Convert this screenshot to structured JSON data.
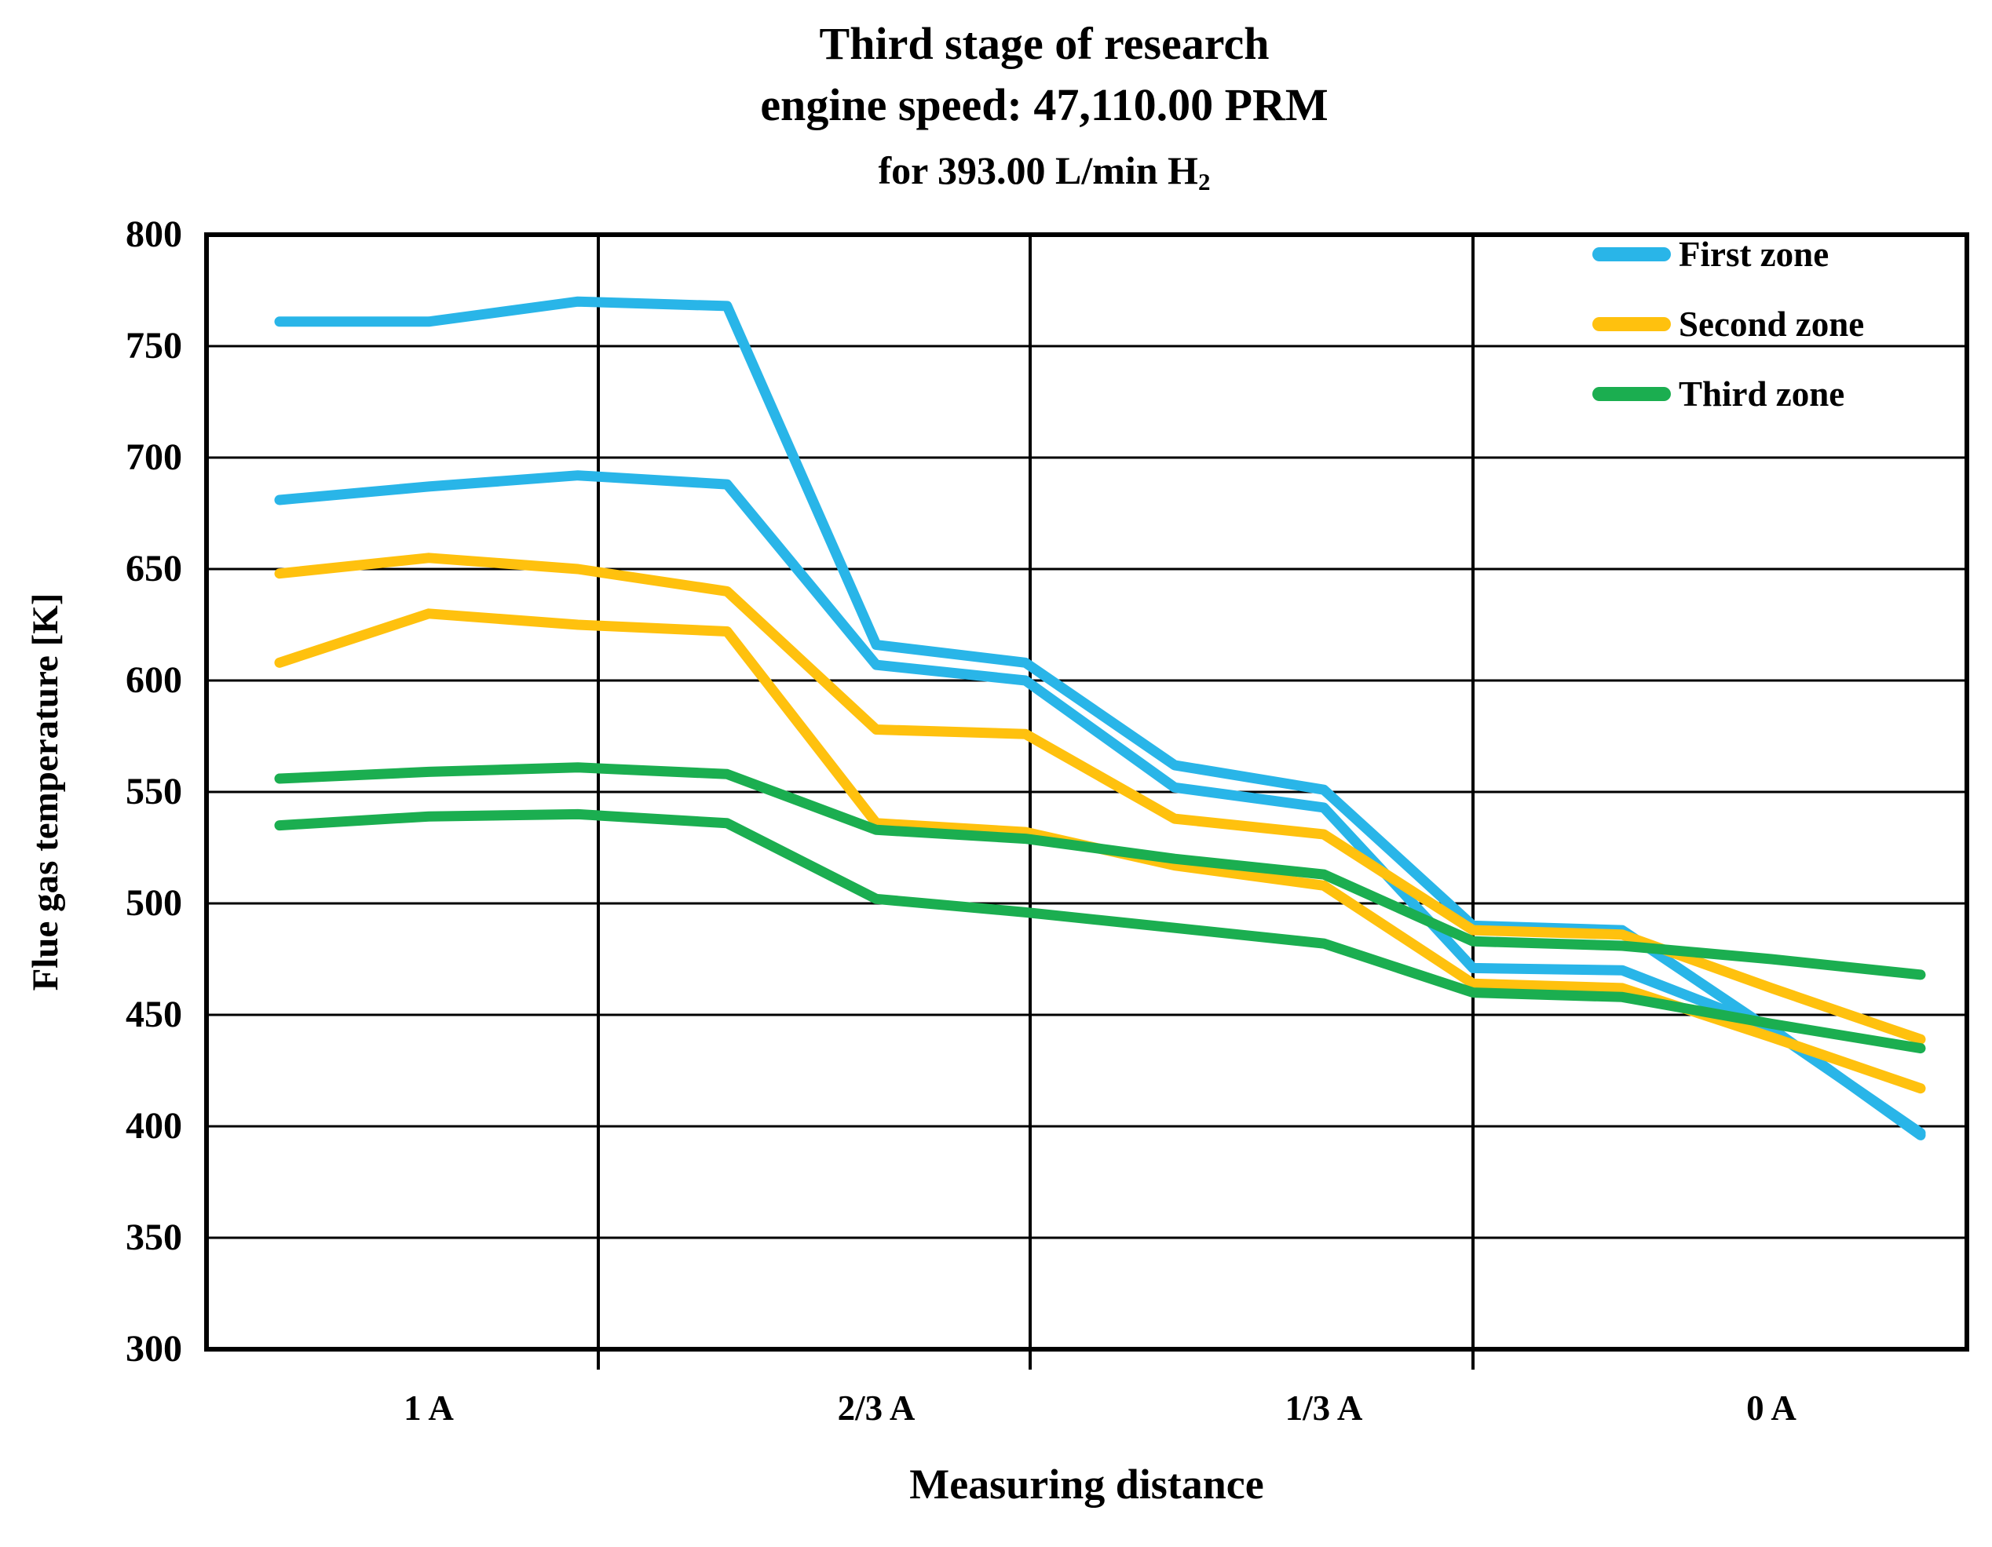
{
  "title": {
    "line1": "Third stage of research",
    "line2": "engine speed: 47,110.00 PRM",
    "line3_prefix": "for 393.00 L/min H",
    "line3_sub": "2"
  },
  "chart_data": {
    "type": "line",
    "title": "Third stage of research engine speed: 47,110.00 PRM for 393.00 L/min H2",
    "xlabel": "Measuring distance",
    "ylabel": "Flue gas temperature [K]",
    "ylim": [
      300,
      800
    ],
    "yticks": [
      800,
      750,
      700,
      650,
      600,
      550,
      500,
      450,
      400,
      350,
      300
    ],
    "x_group_labels": [
      "1 A",
      "2/3 A",
      "1/3 A",
      "0 A"
    ],
    "points_per_group": 3,
    "grid": "horizontal gridlines every 50 K, vertical separators between measuring-distance groups",
    "legend_position": "top-right inside plot",
    "series": [
      {
        "name": "First zone",
        "color": "#29B5E8",
        "lines": [
          [
            761,
            761,
            770,
            768,
            616,
            608,
            562,
            551,
            490,
            488,
            443,
            397
          ],
          [
            681,
            687,
            692,
            688,
            607,
            600,
            552,
            543,
            471,
            470,
            444,
            396
          ]
        ]
      },
      {
        "name": "Second zone",
        "color": "#FFC10E",
        "lines": [
          [
            648,
            655,
            650,
            640,
            578,
            576,
            538,
            531,
            488,
            486,
            462,
            439
          ],
          [
            608,
            630,
            625,
            622,
            536,
            532,
            517,
            508,
            464,
            462,
            440,
            417
          ]
        ]
      },
      {
        "name": "Third zone",
        "color": "#1BAE50",
        "lines": [
          [
            556,
            559,
            561,
            558,
            533,
            529,
            520,
            513,
            483,
            481,
            475,
            468
          ],
          [
            535,
            539,
            540,
            536,
            502,
            496,
            489,
            482,
            460,
            458,
            446,
            435
          ]
        ]
      }
    ]
  }
}
